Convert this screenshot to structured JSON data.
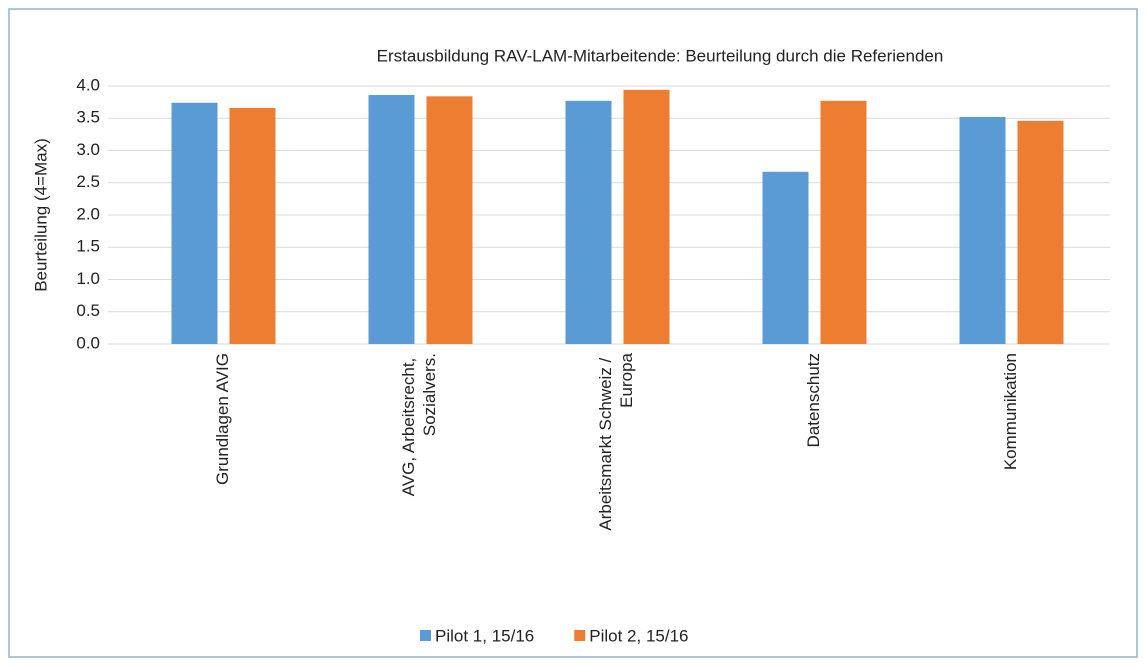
{
  "chart_data": {
    "type": "bar",
    "title": "Erstausbildung RAV-LAM-Mitarbeitende: Beurteilung durch die Referienden",
    "y_label": "Beurteilung (4=Max)",
    "categories": [
      "Grundlagen AVIG",
      "AVG, Arbeitsrecht, Sozialvers.",
      "Arbeitsmarkt Schweiz / Europa",
      "Datenschutz",
      "Kommunikation"
    ],
    "series": [
      {
        "name": "Pilot 1, 15/16",
        "color": "#5b9bd5",
        "values": [
          3.74,
          3.86,
          3.77,
          2.67,
          3.52
        ]
      },
      {
        "name": "Pilot 2, 15/16",
        "color": "#ed7d31",
        "values": [
          3.66,
          3.84,
          3.94,
          3.77,
          3.46
        ]
      }
    ],
    "ylim": [
      0,
      4
    ],
    "yticks": [
      {
        "value": 0,
        "label": "0.0"
      },
      {
        "value": 0.5,
        "label": "0.5"
      },
      {
        "value": 1,
        "label": "1.0"
      },
      {
        "value": 1.5,
        "label": "1.5"
      },
      {
        "value": 2,
        "label": "2.0"
      },
      {
        "value": 2.5,
        "label": "2.5"
      },
      {
        "value": 3,
        "label": "3.0"
      },
      {
        "value": 3.5,
        "label": "3.5"
      },
      {
        "value": 4,
        "label": "4.0"
      }
    ],
    "grid": true,
    "legend": "bottom"
  }
}
